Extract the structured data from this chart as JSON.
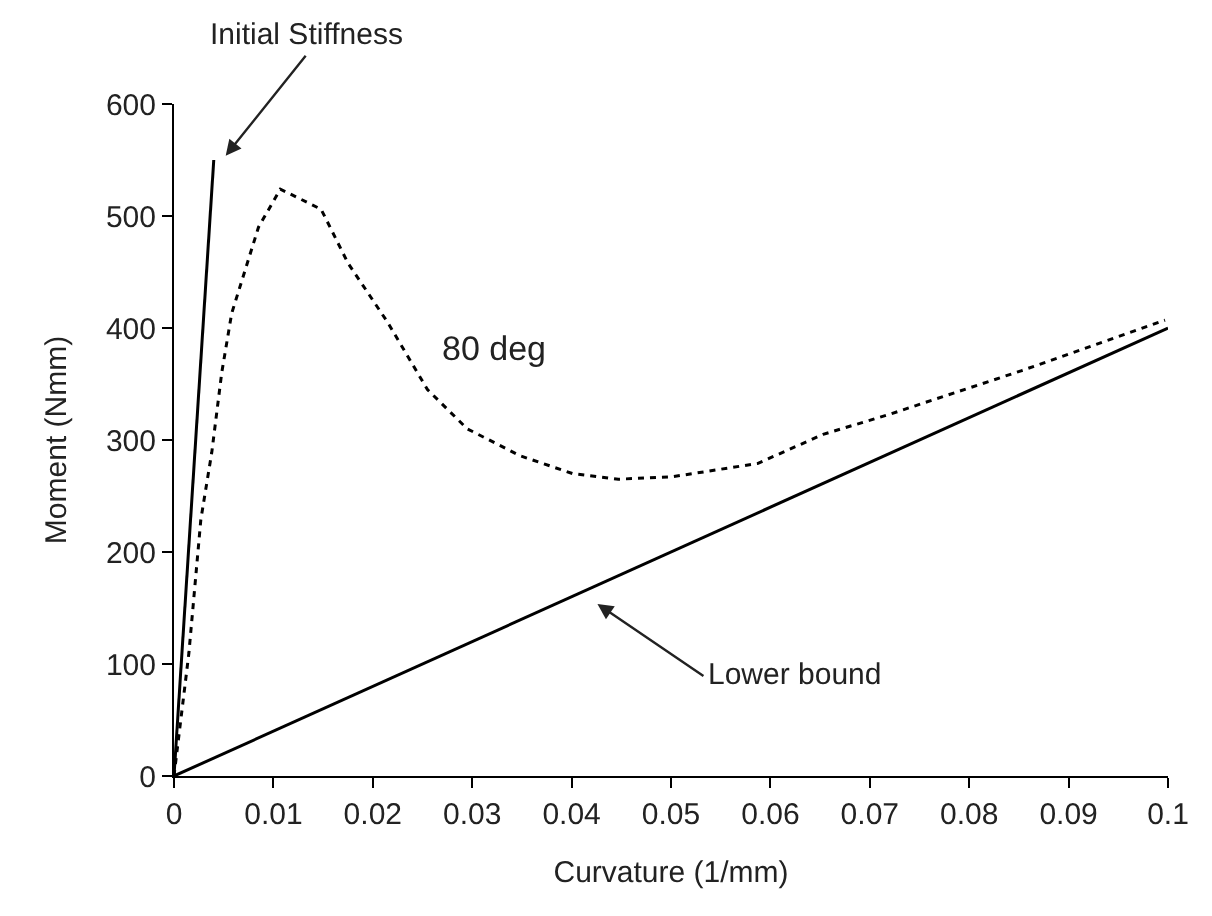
{
  "chart_data": {
    "type": "line",
    "xlabel": "Curvature (1/mm)",
    "ylabel": "Moment (Nmm)",
    "xlim": [
      0,
      0.1
    ],
    "xticks": [
      0,
      0.01,
      0.02,
      0.03,
      0.04,
      0.05,
      0.06,
      0.07,
      0.08,
      0.09,
      0.1
    ],
    "ylim": [
      0,
      600
    ],
    "yticks": [
      0,
      100,
      200,
      300,
      400,
      500,
      600
    ],
    "marker": "none",
    "series": [
      {
        "color": "#000000",
        "line_style": "solid",
        "x": [
          0,
          0.004
        ],
        "values": [
          0,
          550
        ]
      },
      {
        "color": "#000000",
        "line_style": "solid",
        "x": [
          0,
          0.1
        ],
        "values": [
          0,
          400
        ]
      },
      {
        "color": "#000000",
        "line_style": "dotted",
        "x": [
          0,
          0.0015,
          0.0027,
          0.0038,
          0.0048,
          0.0058,
          0.0085,
          0.0107,
          0.0148,
          0.0175,
          0.0215,
          0.0255,
          0.0295,
          0.0348,
          0.0401,
          0.0447,
          0.05,
          0.0587,
          0.0653,
          0.072,
          0.0853,
          0.0997
        ],
        "values": [
          0,
          110,
          229,
          289,
          360,
          413,
          490,
          524,
          506,
          458,
          405,
          345,
          310,
          286,
          270,
          265,
          267,
          279,
          305,
          323,
          362,
          407
        ]
      }
    ],
    "annotations": [
      "Initial Stiffness",
      "Lower bound",
      "80 deg"
    ]
  }
}
